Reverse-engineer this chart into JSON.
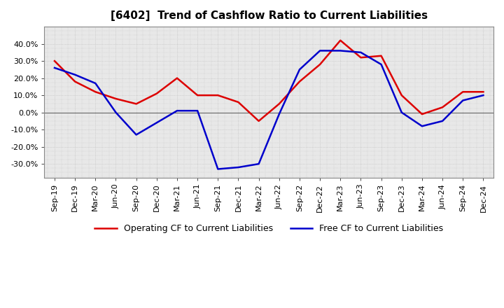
{
  "title": "[6402]  Trend of Cashflow Ratio to Current Liabilities",
  "x_labels": [
    "Sep-19",
    "Dec-19",
    "Mar-20",
    "Jun-20",
    "Sep-20",
    "Dec-20",
    "Mar-21",
    "Jun-21",
    "Sep-21",
    "Dec-21",
    "Mar-22",
    "Jun-22",
    "Sep-22",
    "Dec-22",
    "Mar-23",
    "Jun-23",
    "Sep-23",
    "Dec-23",
    "Mar-24",
    "Jun-24",
    "Sep-24",
    "Dec-24"
  ],
  "operating_cf_points": [
    0.3,
    0.18,
    0.12,
    0.08,
    0.05,
    0.11,
    0.2,
    0.1,
    0.1,
    0.06,
    -0.05,
    0.05,
    0.18,
    0.28,
    0.42,
    0.32,
    0.33,
    0.1,
    -0.01,
    0.03,
    0.12,
    0.12
  ],
  "free_cf_points": [
    0.26,
    0.22,
    0.17,
    0.0,
    -0.13,
    -0.06,
    0.01,
    0.01,
    -0.33,
    -0.32,
    -0.3,
    -0.01,
    0.25,
    0.36,
    0.36,
    0.35,
    0.28,
    0.0,
    -0.08,
    -0.05,
    0.07,
    0.1
  ],
  "operating_color": "#dd0000",
  "free_color": "#0000cc",
  "ylim": [
    -0.38,
    0.5
  ],
  "yticks": [
    -0.3,
    -0.2,
    -0.1,
    0.0,
    0.1,
    0.2,
    0.3,
    0.4
  ],
  "background_color": "#ffffff",
  "plot_bg_color": "#e8e8e8",
  "grid_color": "#bbbbbb",
  "title_fontsize": 11,
  "legend_fontsize": 9,
  "tick_fontsize": 8
}
